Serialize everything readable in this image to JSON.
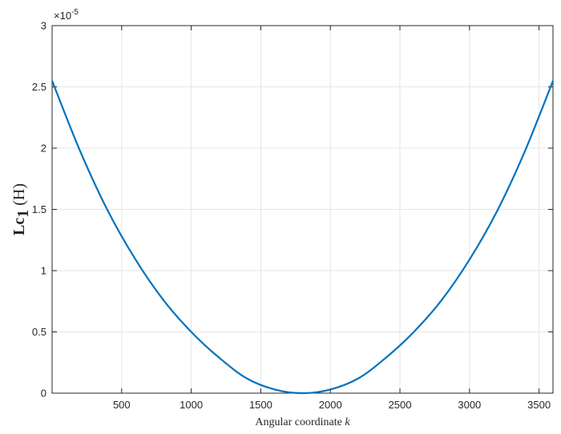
{
  "chart_data": {
    "type": "line",
    "title": "",
    "xlabel_prefix": "Angular coordinate ",
    "xlabel_var": "k",
    "ylabel_main": "Lc",
    "ylabel_sub": "1",
    "ylabel_unit": " (H)",
    "y_exponent_base": "×10",
    "y_exponent_power": "-5",
    "xlim": [
      0,
      3600
    ],
    "ylim": [
      0,
      3
    ],
    "x_ticks": [
      500,
      1000,
      1500,
      2000,
      2500,
      3000,
      3500
    ],
    "y_ticks": [
      0,
      0.5,
      1,
      1.5,
      2,
      2.5,
      3
    ],
    "y_tick_labels": [
      "0",
      "0.5",
      "1",
      "1.5",
      "2",
      "2.5",
      "3"
    ],
    "grid": true,
    "series": [
      {
        "color": "#0072BD",
        "x": [
          0,
          200,
          400,
          600,
          800,
          1000,
          1200,
          1400,
          1600,
          1800,
          2000,
          2200,
          2400,
          2600,
          2800,
          3000,
          3200,
          3400,
          3600
        ],
        "y": [
          2.55,
          1.98,
          1.49,
          1.09,
          0.76,
          0.5,
          0.29,
          0.12,
          0.03,
          0.0,
          0.03,
          0.12,
          0.29,
          0.5,
          0.76,
          1.09,
          1.49,
          1.98,
          2.55
        ]
      }
    ]
  }
}
